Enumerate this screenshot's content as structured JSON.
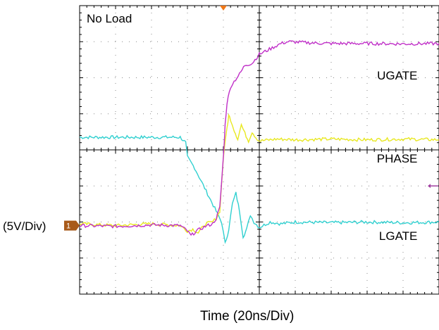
{
  "chart_data": {
    "type": "line",
    "title": "No Load",
    "xlabel": "Time (20ns/Div)",
    "ylabel": "(5V/Div)",
    "divisions": {
      "x": 10,
      "y": 8
    },
    "xlim": [
      0,
      10
    ],
    "ylim": [
      -4,
      4
    ],
    "grid": true,
    "ground_marker": {
      "label": "1",
      "y": -2.1
    },
    "trigger_marker": {
      "x": 4.0
    },
    "level_marker": {
      "y": -1.0
    },
    "series": [
      {
        "name": "UGATE",
        "color": "#c030c8",
        "label_pos": {
          "x": 9.4,
          "y": 1.95
        },
        "points": [
          [
            0,
            -2.1
          ],
          [
            1,
            -2.12
          ],
          [
            2,
            -2.08
          ],
          [
            2.8,
            -2.1
          ],
          [
            3.0,
            -2.25
          ],
          [
            3.1,
            -2.38
          ],
          [
            3.25,
            -2.25
          ],
          [
            3.5,
            -2.12
          ],
          [
            3.7,
            -2.05
          ],
          [
            3.8,
            -1.9
          ],
          [
            3.9,
            -1.6
          ],
          [
            4.0,
            -0.2
          ],
          [
            4.05,
            0.7
          ],
          [
            4.1,
            1.3
          ],
          [
            4.2,
            1.75
          ],
          [
            4.3,
            1.9
          ],
          [
            4.45,
            2.1
          ],
          [
            4.6,
            2.35
          ],
          [
            4.8,
            2.4
          ],
          [
            5.0,
            2.65
          ],
          [
            5.2,
            2.75
          ],
          [
            5.4,
            2.85
          ],
          [
            5.6,
            2.95
          ],
          [
            5.8,
            3.0
          ],
          [
            6.2,
            2.98
          ],
          [
            6.6,
            2.96
          ],
          [
            7,
            2.95
          ],
          [
            7.5,
            2.95
          ],
          [
            8,
            2.95
          ],
          [
            9,
            2.94
          ],
          [
            10,
            2.95
          ]
        ]
      },
      {
        "name": "PHASE",
        "color": "#e8e820",
        "label_pos": {
          "x": 9.4,
          "y": -0.35
        },
        "points": [
          [
            0,
            -2.05
          ],
          [
            1,
            -2.1
          ],
          [
            2,
            -2.05
          ],
          [
            2.8,
            -2.1
          ],
          [
            3.0,
            -2.25
          ],
          [
            3.15,
            -2.2
          ],
          [
            3.3,
            -2.3
          ],
          [
            3.5,
            -2.05
          ],
          [
            3.7,
            -2.0
          ],
          [
            3.8,
            -1.9
          ],
          [
            3.9,
            -1.7
          ],
          [
            4.0,
            -0.2
          ],
          [
            4.1,
            0.6
          ],
          [
            4.15,
            0.95
          ],
          [
            4.2,
            0.85
          ],
          [
            4.3,
            0.55
          ],
          [
            4.4,
            0.3
          ],
          [
            4.5,
            0.7
          ],
          [
            4.6,
            0.45
          ],
          [
            4.7,
            0.25
          ],
          [
            4.8,
            0.5
          ],
          [
            4.9,
            0.35
          ],
          [
            5.0,
            0.25
          ],
          [
            5.5,
            0.3
          ],
          [
            6,
            0.28
          ],
          [
            7,
            0.3
          ],
          [
            8,
            0.28
          ],
          [
            9,
            0.3
          ],
          [
            10,
            0.28
          ]
        ]
      },
      {
        "name": "LGATE",
        "color": "#30d0d0",
        "label_pos": {
          "x": 9.4,
          "y": -2.5
        },
        "points": [
          [
            0,
            0.35
          ],
          [
            1,
            0.35
          ],
          [
            2,
            0.35
          ],
          [
            2.8,
            0.35
          ],
          [
            2.95,
            0.2
          ],
          [
            3.0,
            -0.2
          ],
          [
            3.2,
            -0.5
          ],
          [
            3.4,
            -0.9
          ],
          [
            3.6,
            -1.3
          ],
          [
            3.8,
            -1.7
          ],
          [
            3.95,
            -2.0
          ],
          [
            4.05,
            -2.6
          ],
          [
            4.15,
            -2.2
          ],
          [
            4.25,
            -1.5
          ],
          [
            4.35,
            -1.2
          ],
          [
            4.45,
            -1.7
          ],
          [
            4.55,
            -2.4
          ],
          [
            4.65,
            -2.2
          ],
          [
            4.75,
            -1.8
          ],
          [
            4.85,
            -2.0
          ],
          [
            5.0,
            -2.15
          ],
          [
            5.3,
            -2.0
          ],
          [
            5.6,
            -2.05
          ],
          [
            6,
            -2.0
          ],
          [
            7,
            -2.02
          ],
          [
            8,
            -2.0
          ],
          [
            9,
            -2.02
          ],
          [
            10,
            -2.0
          ]
        ]
      }
    ]
  },
  "colors": {
    "grid_dots": "#8a8a8a",
    "axis": "#000000",
    "ground_marker": "#a85a1a",
    "trigger_marker": "#f07818",
    "level_marker": "#a040a0"
  }
}
